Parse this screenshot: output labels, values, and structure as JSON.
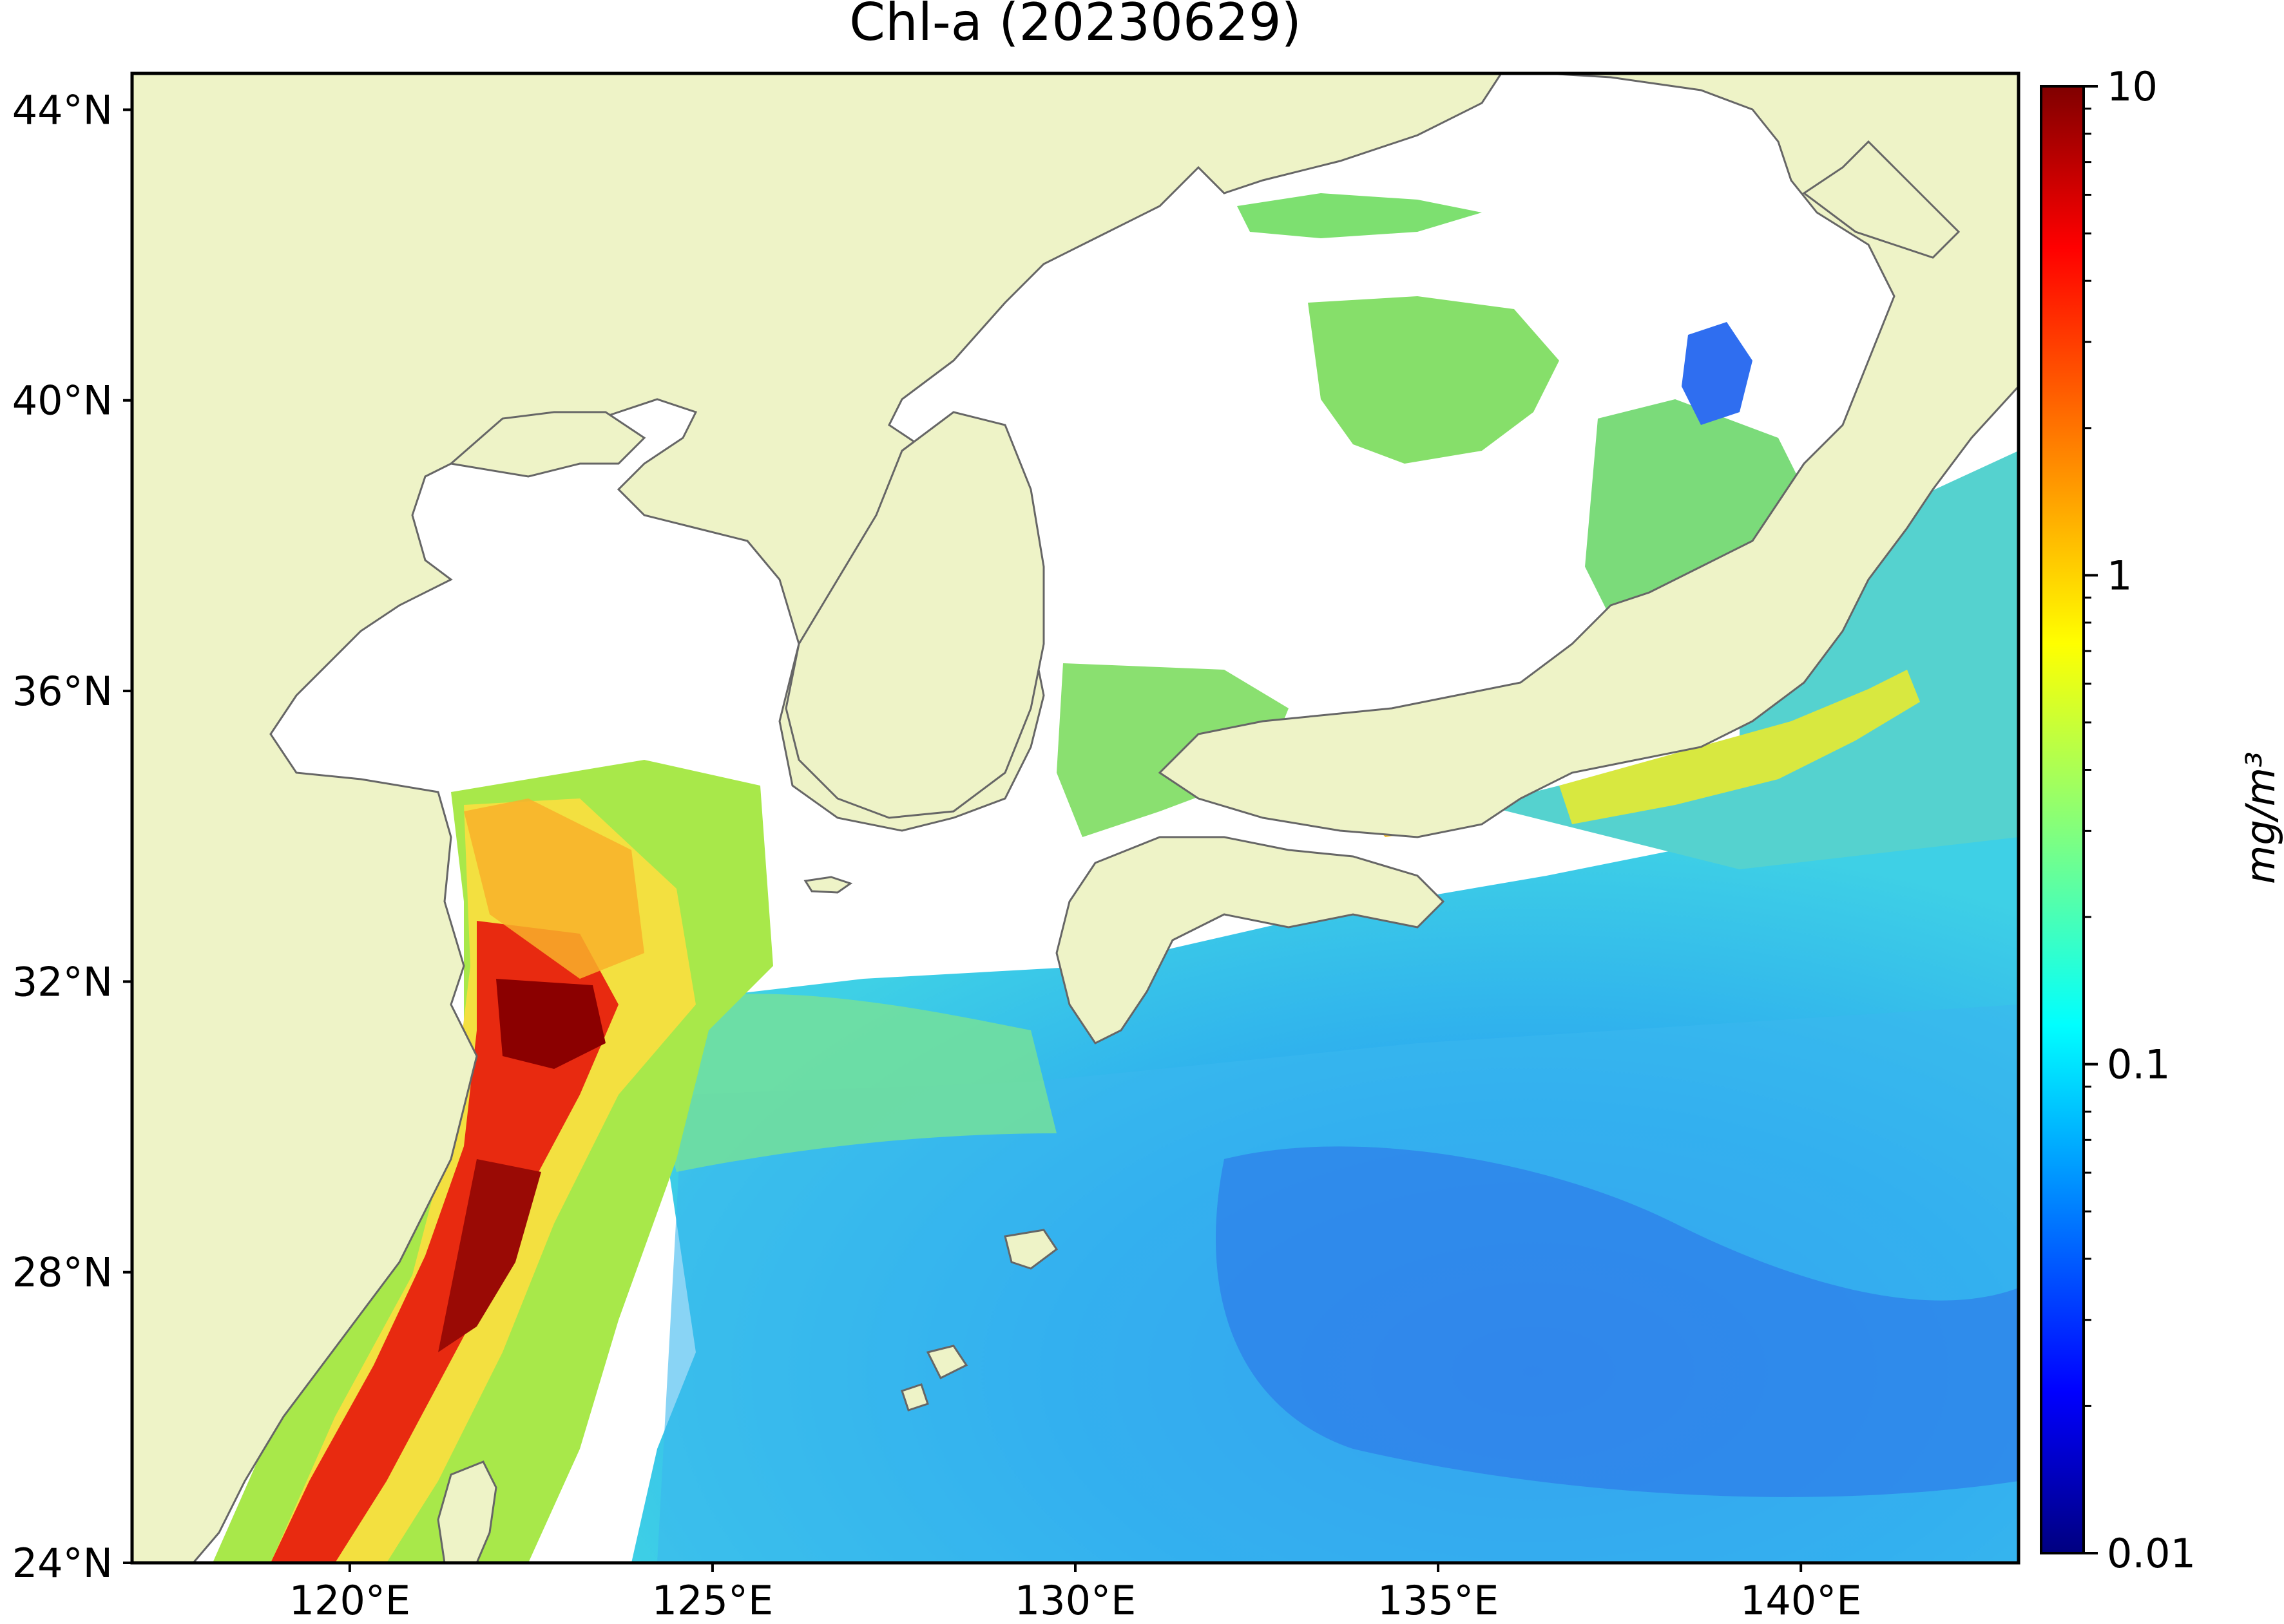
{
  "title": "Chl-a (20230629)",
  "map": {
    "lon_range": [
      117,
      143
    ],
    "lat_range": [
      24,
      44.5
    ],
    "lat_ticks": [
      {
        "value": 44,
        "label": "44°N"
      },
      {
        "value": 40,
        "label": "40°N"
      },
      {
        "value": 36,
        "label": "36°N"
      },
      {
        "value": 32,
        "label": "32°N"
      },
      {
        "value": 28,
        "label": "28°N"
      },
      {
        "value": 24,
        "label": "24°N"
      }
    ],
    "lon_ticks": [
      {
        "value": 120,
        "label": "120°E"
      },
      {
        "value": 125,
        "label": "125°E"
      },
      {
        "value": 130,
        "label": "130°E"
      },
      {
        "value": 135,
        "label": "135°E"
      },
      {
        "value": 140,
        "label": "140°E"
      }
    ],
    "land_color": "#eef3c7",
    "no_data_color": "#ffffff",
    "coastline_color": "#666666"
  },
  "colorbar": {
    "label": "mg/m³",
    "scale": "log",
    "colormap": "jet",
    "range": [
      0.01,
      10
    ],
    "ticks": [
      {
        "value": 10,
        "label": "10"
      },
      {
        "value": 1,
        "label": "1"
      },
      {
        "value": 0.1,
        "label": "0.1"
      },
      {
        "value": 0.01,
        "label": "0.01"
      }
    ]
  }
}
